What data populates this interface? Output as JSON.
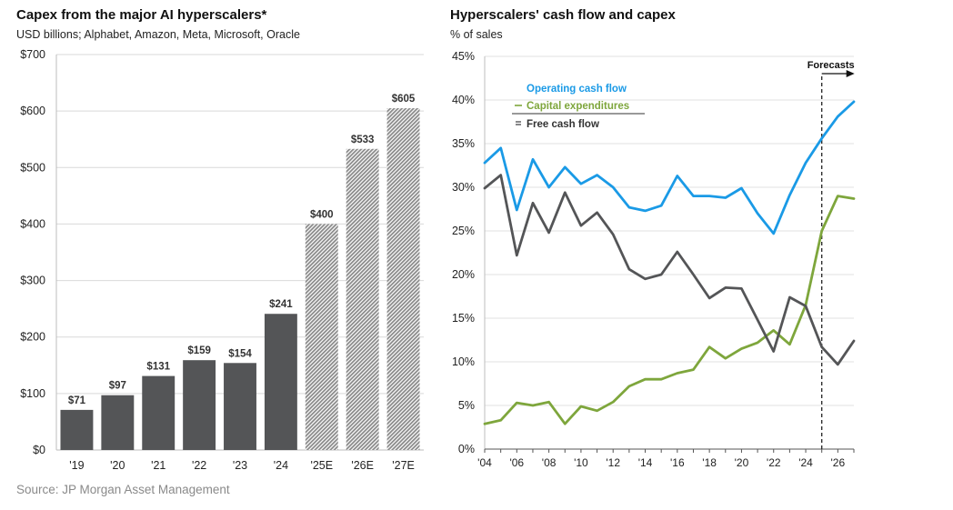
{
  "source": "Source: JP Morgan Asset Management",
  "colors": {
    "bar_actual": "#545557",
    "bar_estimate": "#a9a9a9",
    "ocf": "#1a9ae6",
    "capex": "#7ea63c",
    "fcf": "#545557",
    "forecast_line": "#222222"
  },
  "chart_data": [
    {
      "type": "bar",
      "title": "Capex from the major AI hyperscalers*",
      "subtitle": "USD billions; Alphabet, Amazon, Meta, Microsoft, Oracle",
      "categories": [
        "'19",
        "'20",
        "'21",
        "'22",
        "'23",
        "'24",
        "'25E",
        "'26E",
        "'27E"
      ],
      "values": [
        71,
        97,
        131,
        159,
        154,
        241,
        400,
        533,
        605
      ],
      "value_labels": [
        "$71",
        "$97",
        "$131",
        "$159",
        "$154",
        "$241",
        "$400",
        "$533",
        "$605"
      ],
      "estimate": [
        false,
        false,
        false,
        false,
        false,
        false,
        true,
        true,
        true
      ],
      "ylim": [
        0,
        700
      ],
      "yticks": [
        0,
        100,
        200,
        300,
        400,
        500,
        600,
        700
      ],
      "ytick_labels": [
        "$0",
        "$100",
        "$200",
        "$300",
        "$400",
        "$500",
        "$600",
        "$700"
      ]
    },
    {
      "type": "line",
      "title": "Hyperscalers' cash flow and capex",
      "subtitle": "% of sales",
      "x": [
        2004,
        2005,
        2006,
        2007,
        2008,
        2009,
        2010,
        2011,
        2012,
        2013,
        2014,
        2015,
        2016,
        2017,
        2018,
        2019,
        2020,
        2021,
        2022,
        2023,
        2024,
        2025,
        2026,
        2027
      ],
      "xlim": [
        2004,
        2027
      ],
      "xticks": [
        2004,
        2006,
        2008,
        2010,
        2012,
        2014,
        2016,
        2018,
        2020,
        2022,
        2024,
        2026
      ],
      "xtick_labels": [
        "'04",
        "'06",
        "'08",
        "'10",
        "'12",
        "'14",
        "'16",
        "'18",
        "'20",
        "'22",
        "'24",
        "'26"
      ],
      "ylim": [
        0,
        45
      ],
      "yticks": [
        0,
        5,
        10,
        15,
        20,
        25,
        30,
        35,
        40,
        45
      ],
      "ytick_labels": [
        "0%",
        "5%",
        "10%",
        "15%",
        "20%",
        "25%",
        "30%",
        "35%",
        "40%",
        "45%"
      ],
      "series": [
        {
          "name": "Operating cash flow",
          "color": "#1a9ae6",
          "values": [
            32.8,
            34.5,
            27.4,
            33.2,
            30.0,
            32.3,
            30.4,
            31.4,
            30.0,
            27.7,
            27.3,
            27.9,
            31.3,
            29.0,
            29.0,
            28.8,
            29.9,
            27.0,
            24.7,
            29.1,
            32.8,
            35.6,
            38.1,
            39.8
          ]
        },
        {
          "name": "Capital expenditures",
          "color": "#7ea63c",
          "values": [
            2.9,
            3.3,
            5.3,
            5.0,
            5.4,
            2.9,
            4.9,
            4.4,
            5.4,
            7.2,
            8.0,
            8.0,
            8.7,
            9.1,
            11.7,
            10.4,
            11.5,
            12.2,
            13.6,
            12.0,
            16.5,
            25.0,
            29.0,
            28.7
          ]
        },
        {
          "name": "Free cash flow",
          "color": "#545557",
          "values": [
            29.9,
            31.4,
            22.2,
            28.2,
            24.8,
            29.4,
            25.6,
            27.1,
            24.6,
            20.6,
            19.5,
            20.0,
            22.6,
            20.0,
            17.3,
            18.5,
            18.4,
            14.8,
            11.2,
            17.4,
            16.4,
            11.7,
            9.7,
            12.4
          ]
        }
      ],
      "legend": [
        "Operating cash flow",
        "Capital expenditures",
        "Free cash flow"
      ],
      "forecast_label": "Forecasts",
      "forecast_x": 2025
    }
  ]
}
